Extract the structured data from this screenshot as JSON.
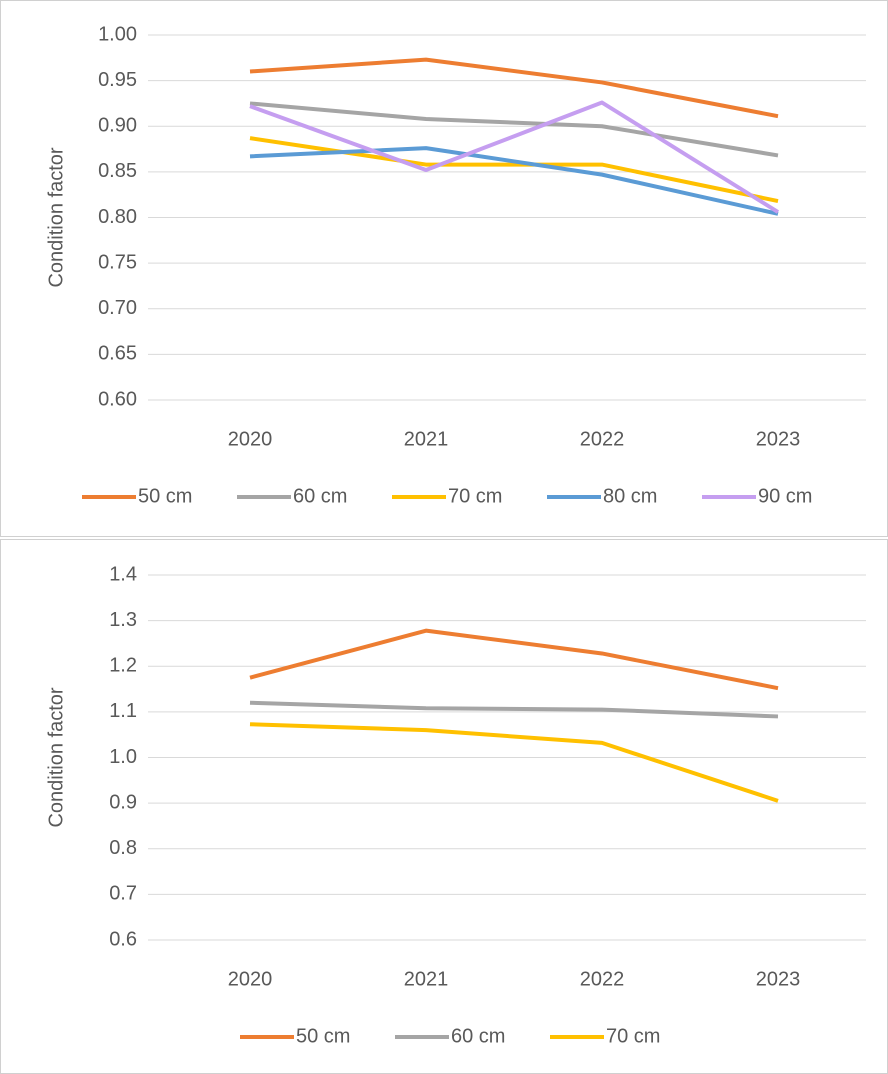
{
  "chart_data": [
    {
      "type": "line",
      "y_label": "Condition factor",
      "categories": [
        "2020",
        "2021",
        "2022",
        "2023"
      ],
      "series": [
        {
          "name": "50 cm",
          "color": "#ed7d31",
          "values": [
            0.96,
            0.973,
            0.948,
            0.911
          ]
        },
        {
          "name": "60 cm",
          "color": "#a5a5a5",
          "values": [
            0.925,
            0.908,
            0.9,
            0.868
          ]
        },
        {
          "name": "70 cm",
          "color": "#ffc000",
          "values": [
            0.887,
            0.858,
            0.858,
            0.818
          ]
        },
        {
          "name": "80 cm",
          "color": "#5b9bd5",
          "values": [
            0.867,
            0.876,
            0.847,
            0.804
          ]
        },
        {
          "name": "90 cm",
          "color": "#c59ef0",
          "values": [
            0.922,
            0.852,
            0.926,
            0.806
          ]
        }
      ],
      "ylim": [
        0.6,
        1.0
      ],
      "yticks": [
        {
          "value": 0.6,
          "label": "0.60"
        },
        0.65,
        {
          "value": 0.7,
          "label": "0.70"
        },
        0.75,
        {
          "value": 0.8,
          "label": "0.80"
        },
        0.85,
        {
          "value": 0.9,
          "label": "0.90"
        },
        0.95,
        {
          "value": 1.0,
          "label": "1.00"
        }
      ],
      "grid": true,
      "legend": "bottom"
    },
    {
      "type": "line",
      "y_label": "Condition factor",
      "categories": [
        "2020",
        "2021",
        "2022",
        "2023"
      ],
      "series": [
        {
          "name": "50 cm",
          "color": "#ed7d31",
          "values": [
            1.175,
            1.278,
            1.228,
            1.152
          ]
        },
        {
          "name": "60 cm",
          "color": "#a5a5a5",
          "values": [
            1.12,
            1.108,
            1.105,
            1.09
          ]
        },
        {
          "name": "70 cm",
          "color": "#ffc000",
          "values": [
            1.073,
            1.06,
            1.032,
            0.905
          ]
        }
      ],
      "ylim": [
        0.6,
        1.4
      ],
      "yticks": [
        0.6,
        0.7,
        0.8,
        0.9,
        {
          "value": 1.0,
          "label": "1.0"
        },
        1.1,
        1.2,
        1.3,
        1.4
      ],
      "grid": true,
      "legend": "bottom"
    }
  ]
}
